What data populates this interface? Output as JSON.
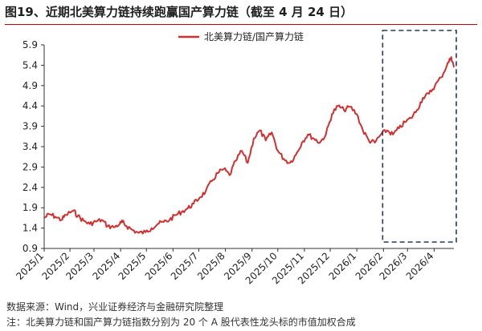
{
  "figure": {
    "title": "图19、近期北美算力链持续跑赢国产算力链（截至 4 月 24 日）",
    "source": "数据来源：Wind，兴业证券经济与金融研究院整理",
    "note": "注：北美算力链和国产算力链指数分别为 20 个 A 股代表性龙头标的市值加权合成"
  },
  "colors": {
    "line": "#d32f2f",
    "box": "#1f3b63",
    "title_rule": "#c00000"
  },
  "chart_data": {
    "type": "line",
    "title": "",
    "xlabel": "",
    "ylabel": "",
    "ylim": [
      0.9,
      5.9
    ],
    "yticks": [
      0.9,
      1.4,
      1.9,
      2.4,
      2.9,
      3.4,
      3.9,
      4.4,
      4.9,
      5.4,
      5.9
    ],
    "ytick_labels": [
      "0.9",
      "1.4",
      "1.9",
      "2.4",
      "2.9",
      "3.4",
      "3.9",
      "4.4",
      "4.9",
      "5.4",
      "5.9"
    ],
    "xticks": [
      "2025/1",
      "2025/2",
      "2025/3",
      "2025/4",
      "2025/5",
      "2025/6",
      "2025/7",
      "2025/8",
      "2025/9",
      "2025/10",
      "2025/11",
      "2025/12",
      "2026/1",
      "2026/2",
      "2026/3",
      "2026/4"
    ],
    "xrange": [
      "2025-01-02",
      "2026-04-24"
    ],
    "grid": false,
    "legend": {
      "position": "top",
      "entries": [
        "北美算力链/国产算力链"
      ]
    },
    "annotations": [
      {
        "type": "dashed-box",
        "from": "2026-02-01",
        "to": "2026-04-24"
      }
    ],
    "series": [
      {
        "name": "北美算力链/国产算力链",
        "points": [
          [
            "2025-01-02",
            1.65
          ],
          [
            "2025-01-08",
            1.74
          ],
          [
            "2025-01-15",
            1.68
          ],
          [
            "2025-01-22",
            1.6
          ],
          [
            "2025-01-27",
            1.72
          ],
          [
            "2025-02-05",
            1.83
          ],
          [
            "2025-02-10",
            1.7
          ],
          [
            "2025-02-17",
            1.58
          ],
          [
            "2025-02-24",
            1.5
          ],
          [
            "2025-03-03",
            1.56
          ],
          [
            "2025-03-10",
            1.6
          ],
          [
            "2025-03-17",
            1.45
          ],
          [
            "2025-03-24",
            1.42
          ],
          [
            "2025-03-31",
            1.5
          ],
          [
            "2025-04-03",
            1.55
          ],
          [
            "2025-04-08",
            1.45
          ],
          [
            "2025-04-15",
            1.35
          ],
          [
            "2025-04-22",
            1.28
          ],
          [
            "2025-04-30",
            1.3
          ],
          [
            "2025-05-07",
            1.4
          ],
          [
            "2025-05-14",
            1.5
          ],
          [
            "2025-05-21",
            1.55
          ],
          [
            "2025-05-28",
            1.6
          ],
          [
            "2025-06-04",
            1.72
          ],
          [
            "2025-06-11",
            1.8
          ],
          [
            "2025-06-18",
            1.88
          ],
          [
            "2025-06-25",
            2.0
          ],
          [
            "2025-07-02",
            2.15
          ],
          [
            "2025-07-09",
            2.3
          ],
          [
            "2025-07-16",
            2.55
          ],
          [
            "2025-07-23",
            2.75
          ],
          [
            "2025-07-30",
            2.85
          ],
          [
            "2025-08-06",
            2.7
          ],
          [
            "2025-08-13",
            3.05
          ],
          [
            "2025-08-20",
            3.3
          ],
          [
            "2025-08-27",
            3.0
          ],
          [
            "2025-09-03",
            3.6
          ],
          [
            "2025-09-10",
            3.8
          ],
          [
            "2025-09-17",
            3.55
          ],
          [
            "2025-09-24",
            3.75
          ],
          [
            "2025-10-01",
            3.3
          ],
          [
            "2025-10-08",
            3.1
          ],
          [
            "2025-10-15",
            3.0
          ],
          [
            "2025-10-22",
            3.2
          ],
          [
            "2025-10-29",
            3.5
          ],
          [
            "2025-11-05",
            3.7
          ],
          [
            "2025-11-12",
            3.6
          ],
          [
            "2025-11-19",
            3.5
          ],
          [
            "2025-11-26",
            3.7
          ],
          [
            "2025-12-03",
            4.2
          ],
          [
            "2025-12-10",
            4.4
          ],
          [
            "2025-12-17",
            4.3
          ],
          [
            "2025-12-24",
            4.38
          ],
          [
            "2026-01-01",
            4.2
          ],
          [
            "2026-01-08",
            3.8
          ],
          [
            "2026-01-15",
            3.55
          ],
          [
            "2026-01-22",
            3.5
          ],
          [
            "2026-01-29",
            3.7
          ],
          [
            "2026-02-05",
            3.8
          ],
          [
            "2026-02-12",
            3.7
          ],
          [
            "2026-02-19",
            3.85
          ],
          [
            "2026-02-26",
            4.0
          ],
          [
            "2026-03-05",
            4.1
          ],
          [
            "2026-03-12",
            4.3
          ],
          [
            "2026-03-19",
            4.6
          ],
          [
            "2026-03-26",
            4.7
          ],
          [
            "2026-04-02",
            4.9
          ],
          [
            "2026-04-09",
            5.1
          ],
          [
            "2026-04-16",
            5.4
          ],
          [
            "2026-04-21",
            5.6
          ],
          [
            "2026-04-24",
            5.35
          ]
        ]
      }
    ]
  }
}
